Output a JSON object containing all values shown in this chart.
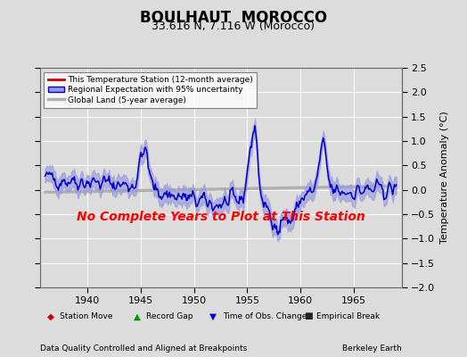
{
  "title": "BOULHAUT  MOROCCO",
  "subtitle": "33.616 N, 7.116 W (Morocco)",
  "ylabel": "Temperature Anomaly (°C)",
  "xlabel_bottom_left": "Data Quality Controlled and Aligned at Breakpoints",
  "xlabel_bottom_right": "Berkeley Earth",
  "no_data_text": "No Complete Years to Plot at This Station",
  "xlim": [
    1935.5,
    1969.5
  ],
  "ylim": [
    -2.0,
    2.5
  ],
  "yticks": [
    -2,
    -1.5,
    -1,
    -0.5,
    0,
    0.5,
    1,
    1.5,
    2,
    2.5
  ],
  "xticks": [
    1940,
    1945,
    1950,
    1955,
    1960,
    1965
  ],
  "bg_color": "#dcdcdc",
  "plot_bg_color": "#dcdcdc",
  "regional_line_color": "#0000cc",
  "regional_fill_color": "#9999dd",
  "station_line_color": "#cc0000",
  "global_line_color": "#b0b0b0",
  "grid_color": "#ffffff",
  "title_fontsize": 12,
  "subtitle_fontsize": 9,
  "seed": 42
}
